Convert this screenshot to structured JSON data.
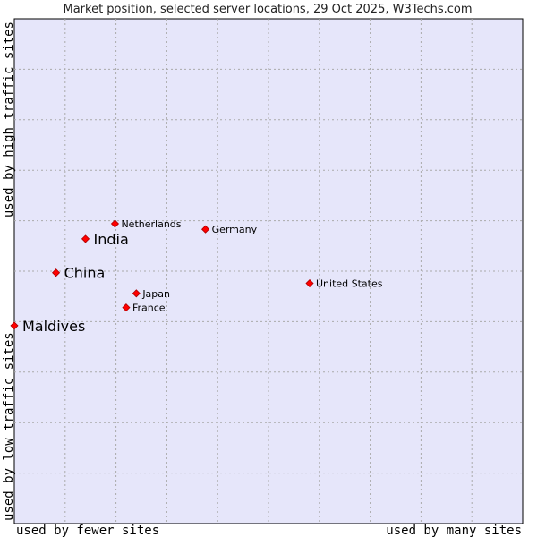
{
  "chart_data": {
    "type": "scatter",
    "title": "Market position, selected server locations, 29 Oct 2025, W3Techs.com",
    "xlabel_low": "used by fewer sites",
    "xlabel_high": "used by many sites",
    "ylabel_low": "used by low traffic sites",
    "ylabel_high": "used by high traffic sites",
    "xlim": [
      0,
      100
    ],
    "ylim": [
      0,
      100
    ],
    "grid": true,
    "grid_divisions_x": 10,
    "grid_divisions_y": 10,
    "plot_background": "#e6e6fa",
    "grid_color": "#aaaaaa",
    "point_color": "#ff0000",
    "points": [
      {
        "name": "Netherlands",
        "x": 19.8,
        "y": 59.4,
        "emphasis": false
      },
      {
        "name": "India",
        "x": 14.0,
        "y": 56.4,
        "emphasis": true
      },
      {
        "name": "Germany",
        "x": 37.6,
        "y": 58.3,
        "emphasis": false
      },
      {
        "name": "China",
        "x": 8.2,
        "y": 49.7,
        "emphasis": true
      },
      {
        "name": "United States",
        "x": 58.1,
        "y": 47.6,
        "emphasis": false
      },
      {
        "name": "Japan",
        "x": 24.0,
        "y": 45.6,
        "emphasis": false
      },
      {
        "name": "France",
        "x": 22.0,
        "y": 42.8,
        "emphasis": false
      },
      {
        "name": "Maldives",
        "x": 0.0,
        "y": 39.2,
        "emphasis": true
      }
    ]
  }
}
